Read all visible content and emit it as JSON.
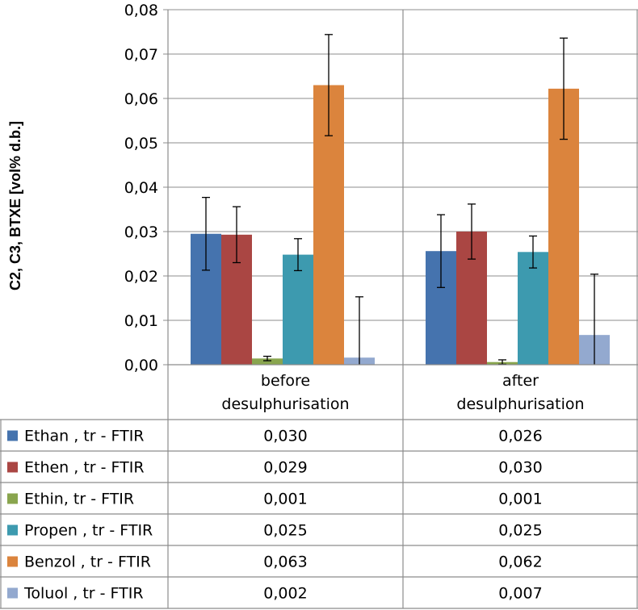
{
  "chart_data": {
    "type": "bar",
    "title": "",
    "xlabel": "",
    "ylabel": "C2, C3, BTXE [vol% d.b.]",
    "ylim": [
      0,
      0.08
    ],
    "yticks": [
      "0,00",
      "0,01",
      "0,02",
      "0,03",
      "0,04",
      "0,05",
      "0,06",
      "0,07",
      "0,08"
    ],
    "ytick_values": [
      0,
      0.01,
      0.02,
      0.03,
      0.04,
      0.05,
      0.06,
      0.07,
      0.08
    ],
    "grid": true,
    "legend": "data-table-below",
    "categories": [
      [
        "before",
        "desulphurisation"
      ],
      [
        "after",
        "desulphurisation"
      ]
    ],
    "series": [
      {
        "name": "Ethan , tr - FTIR",
        "color": "#4573AE",
        "values": [
          0.0295,
          0.0256
        ],
        "errors": [
          0.0082,
          0.0082
        ],
        "table": [
          "0,030",
          "0,026"
        ]
      },
      {
        "name": "Ethen , tr - FTIR",
        "color": "#AA4643",
        "values": [
          0.0293,
          0.03
        ],
        "errors": [
          0.0063,
          0.0062
        ],
        "table": [
          "0,029",
          "0,030"
        ]
      },
      {
        "name": "Ethin, tr - FTIR",
        "color": "#89A54E",
        "values": [
          0.0014,
          0.0006
        ],
        "errors": [
          0.0005,
          0.0005
        ],
        "table": [
          "0,001",
          "0,001"
        ]
      },
      {
        "name": "Propen , tr - FTIR",
        "color": "#3D9AAF",
        "values": [
          0.0248,
          0.0254
        ],
        "errors": [
          0.0036,
          0.0036
        ],
        "table": [
          "0,025",
          "0,025"
        ]
      },
      {
        "name": "Benzol , tr - FTIR",
        "color": "#DB843D",
        "values": [
          0.063,
          0.0622
        ],
        "errors": [
          0.0114,
          0.0114
        ],
        "table": [
          "0,063",
          "0,062"
        ]
      },
      {
        "name": "Toluol , tr - FTIR",
        "color": "#93A9CF",
        "values": [
          0.0016,
          0.0067
        ],
        "errors": [
          0.0137,
          0.0137
        ],
        "table": [
          "0,002",
          "0,007"
        ]
      }
    ]
  }
}
